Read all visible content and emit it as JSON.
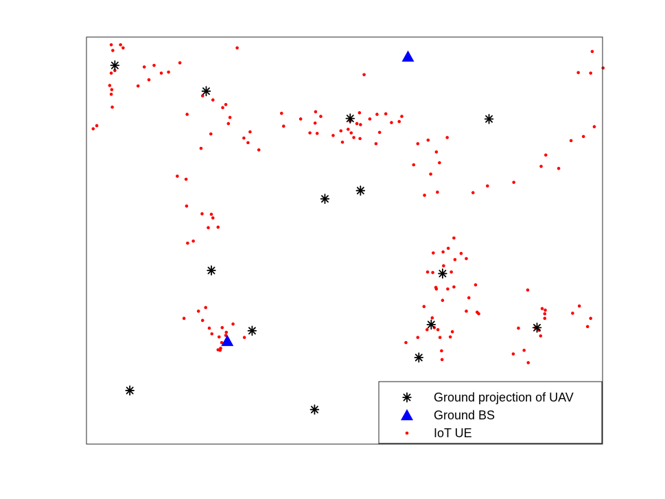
{
  "chart_data": {
    "type": "scatter",
    "title": "",
    "xlabel": "",
    "ylabel": "",
    "xlim": [
      0,
      1000
    ],
    "ylim": [
      0,
      790
    ],
    "grid": false,
    "axis_ticks_visible": false,
    "legend_position": "bottom-right",
    "series": [
      {
        "name": "Ground projection of UAV",
        "marker": "asterisk",
        "color": "#000000",
        "points": [
          [
            55,
            735
          ],
          [
            232,
            685
          ],
          [
            511,
            632
          ],
          [
            462,
            476
          ],
          [
            531,
            492
          ],
          [
            242,
            337
          ],
          [
            321,
            220
          ],
          [
            84,
            104
          ],
          [
            442,
            67
          ],
          [
            780,
            631
          ],
          [
            690,
            331
          ],
          [
            668,
            232
          ],
          [
            644,
            168
          ],
          [
            873,
            226
          ]
        ]
      },
      {
        "name": "Ground BS",
        "marker": "triangle",
        "color": "#0000ff",
        "points": [
          [
            623,
            752
          ],
          [
            273,
            200
          ]
        ]
      },
      {
        "name": "IoT UE",
        "marker": "dot",
        "color": "#ff0000",
        "points": [
          [
            48,
            775
          ],
          [
            66,
            775
          ],
          [
            51,
            764
          ],
          [
            71,
            769
          ],
          [
            55,
            725
          ],
          [
            48,
            720
          ],
          [
            45,
            696
          ],
          [
            49,
            688
          ],
          [
            48,
            679
          ],
          [
            50,
            654
          ],
          [
            13,
            612
          ],
          [
            20,
            618
          ],
          [
            100,
            695
          ],
          [
            112,
            732
          ],
          [
            121,
            707
          ],
          [
            131,
            735
          ],
          [
            145,
            720
          ],
          [
            159,
            722
          ],
          [
            225,
            676
          ],
          [
            195,
            640
          ],
          [
            181,
            740
          ],
          [
            270,
            659
          ],
          [
            264,
            653
          ],
          [
            245,
            668
          ],
          [
            292,
            769
          ],
          [
            538,
            717
          ],
          [
            524,
            622
          ],
          [
            529,
            643
          ],
          [
            549,
            631
          ],
          [
            511,
            627
          ],
          [
            530,
            593
          ],
          [
            580,
            641
          ],
          [
            611,
            636
          ],
          [
            606,
            626
          ],
          [
            591,
            624
          ],
          [
            563,
            640
          ],
          [
            531,
            620
          ],
          [
            568,
            605
          ],
          [
            561,
            583
          ],
          [
            382,
            617
          ],
          [
            378,
            642
          ],
          [
            415,
            631
          ],
          [
            444,
            645
          ],
          [
            454,
            636
          ],
          [
            443,
            623
          ],
          [
            447,
            603
          ],
          [
            433,
            604
          ],
          [
            478,
            599
          ],
          [
            496,
            586
          ],
          [
            493,
            608
          ],
          [
            513,
            604
          ],
          [
            518,
            595
          ],
          [
            507,
            611
          ],
          [
            275,
            622
          ],
          [
            278,
            634
          ],
          [
            241,
            602
          ],
          [
            305,
            594
          ],
          [
            313,
            585
          ],
          [
            334,
            571
          ],
          [
            317,
            606
          ],
          [
            222,
            574
          ],
          [
            193,
            514
          ],
          [
            176,
            520
          ],
          [
            194,
            462
          ],
          [
            207,
            394
          ],
          [
            196,
            390
          ],
          [
            224,
            447
          ],
          [
            236,
            420
          ],
          [
            245,
            439
          ],
          [
            242,
            446
          ],
          [
            255,
            421
          ],
          [
            189,
            244
          ],
          [
            225,
            240
          ],
          [
            217,
            258
          ],
          [
            231,
            265
          ],
          [
            238,
            225
          ],
          [
            263,
            226
          ],
          [
            270,
            211
          ],
          [
            271,
            217
          ],
          [
            243,
            214
          ],
          [
            257,
            208
          ],
          [
            284,
            233
          ],
          [
            306,
            207
          ],
          [
            262,
            197
          ],
          [
            260,
            186
          ],
          [
            255,
            183
          ],
          [
            259,
            182
          ],
          [
            642,
            583
          ],
          [
            634,
            542
          ],
          [
            662,
            590
          ],
          [
            699,
            595
          ],
          [
            678,
            567
          ],
          [
            684,
            546
          ],
          [
            667,
            524
          ],
          [
            680,
            489
          ],
          [
            655,
            483
          ],
          [
            749,
            488
          ],
          [
            777,
            501
          ],
          [
            828,
            508
          ],
          [
            881,
            539
          ],
          [
            890,
            561
          ],
          [
            915,
            535
          ],
          [
            939,
            589
          ],
          [
            963,
            597
          ],
          [
            984,
            616
          ],
          [
            977,
            720
          ],
          [
            953,
            721
          ],
          [
            1001,
            730
          ],
          [
            980,
            762
          ],
          [
            672,
            371
          ],
          [
            691,
            373
          ],
          [
            701,
            380
          ],
          [
            692,
            346
          ],
          [
            678,
            301
          ],
          [
            712,
            400
          ],
          [
            736,
            360
          ],
          [
            726,
            370
          ],
          [
            714,
            358
          ],
          [
            707,
            334
          ],
          [
            700,
            301
          ],
          [
            712,
            305
          ],
          [
            690,
            279
          ],
          [
            741,
            284
          ],
          [
            736,
            258
          ],
          [
            757,
            256
          ],
          [
            760,
            253
          ],
          [
            677,
            304
          ],
          [
            661,
            334
          ],
          [
            671,
            333
          ],
          [
            654,
            267
          ],
          [
            660,
            222
          ],
          [
            674,
            226
          ],
          [
            709,
            218
          ],
          [
            705,
            208
          ],
          [
            681,
            222
          ],
          [
            688,
            181
          ],
          [
            689,
            164
          ],
          [
            685,
            207
          ],
          [
            670,
            245
          ],
          [
            642,
            207
          ],
          [
            619,
            197
          ],
          [
            754,
            309
          ],
          [
            837,
            225
          ],
          [
            870,
            226
          ],
          [
            856,
            158
          ],
          [
            877,
            221
          ],
          [
            880,
            210
          ],
          [
            883,
            263
          ],
          [
            888,
            244
          ],
          [
            888,
            253
          ],
          [
            942,
            254
          ],
          [
            955,
            268
          ],
          [
            977,
            244
          ],
          [
            971,
            228
          ],
          [
            889,
            260
          ],
          [
            848,
            182
          ],
          [
            855,
            299
          ],
          [
            827,
            175
          ]
        ]
      }
    ]
  }
}
